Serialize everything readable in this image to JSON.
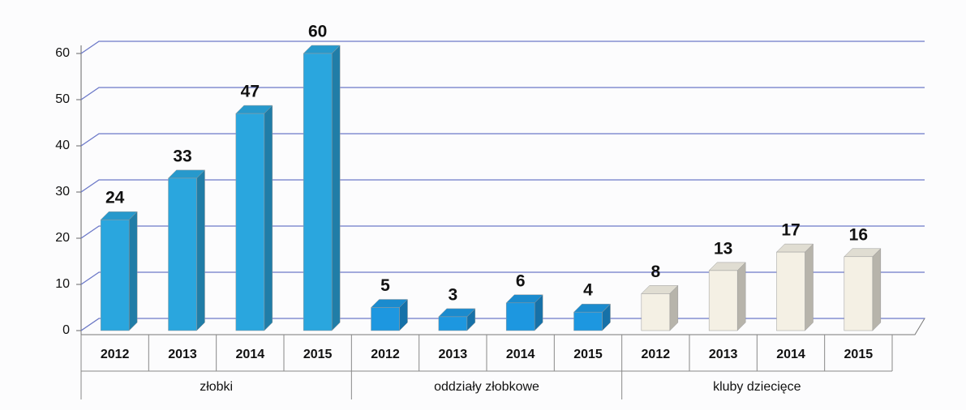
{
  "chart_data": {
    "type": "bar",
    "groups": [
      {
        "name": "złobki",
        "color": "#2aa6de",
        "categories": [
          "2012",
          "2013",
          "2014",
          "2015"
        ],
        "values": [
          24,
          33,
          47,
          60
        ]
      },
      {
        "name": "oddziały złobkowe",
        "color": "#1d97e0",
        "categories": [
          "2012",
          "2013",
          "2014",
          "2015"
        ],
        "values": [
          5,
          3,
          6,
          4
        ]
      },
      {
        "name": "kluby dziecięce",
        "color": "#f4f0e4",
        "categories": [
          "2012",
          "2013",
          "2014",
          "2015"
        ],
        "values": [
          8,
          13,
          17,
          16
        ]
      }
    ],
    "ylim": [
      0,
      70
    ],
    "yticks": [
      0,
      10,
      20,
      30,
      40,
      50,
      60
    ],
    "grid": true
  }
}
